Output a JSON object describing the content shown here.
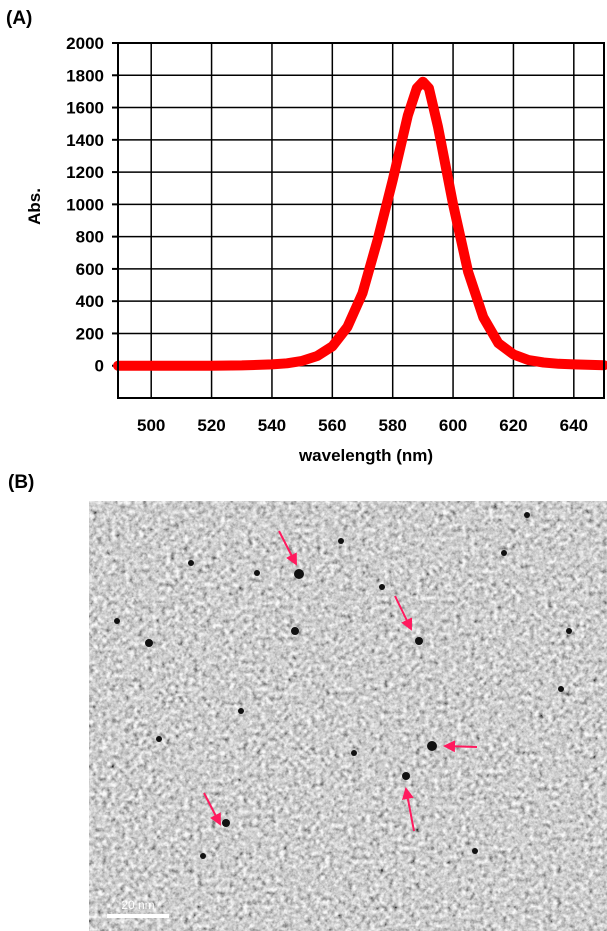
{
  "panels": {
    "a_label": "(A)",
    "b_label": "(B)"
  },
  "colors": {
    "curve": "#ff0000",
    "arrows": "#ff1a5e",
    "grid": "#000000"
  },
  "chart_data": {
    "type": "line",
    "title": "",
    "xlabel": "wavelength (nm)",
    "ylabel": "Abs.",
    "xlim": [
      489,
      650
    ],
    "ylim": [
      -200,
      2000
    ],
    "xticks": [
      500,
      520,
      540,
      560,
      580,
      600,
      620,
      640
    ],
    "yticks": [
      0,
      200,
      400,
      600,
      800,
      1000,
      1200,
      1400,
      1600,
      1800,
      2000
    ],
    "grid": true,
    "series": [
      {
        "x": [
          489,
          500,
          510,
          520,
          530,
          540,
          545,
          550,
          555,
          560,
          565,
          570,
          575,
          580,
          585,
          588,
          590,
          592,
          595,
          600,
          605,
          610,
          615,
          620,
          625,
          630,
          635,
          640,
          650
        ],
        "values": [
          0,
          0,
          0,
          0,
          2,
          8,
          15,
          30,
          60,
          120,
          240,
          450,
          780,
          1150,
          1550,
          1720,
          1760,
          1720,
          1480,
          1000,
          580,
          300,
          140,
          70,
          35,
          20,
          12,
          8,
          3
        ]
      }
    ]
  },
  "tem_image": {
    "scale_bar_label": "20 nm"
  }
}
